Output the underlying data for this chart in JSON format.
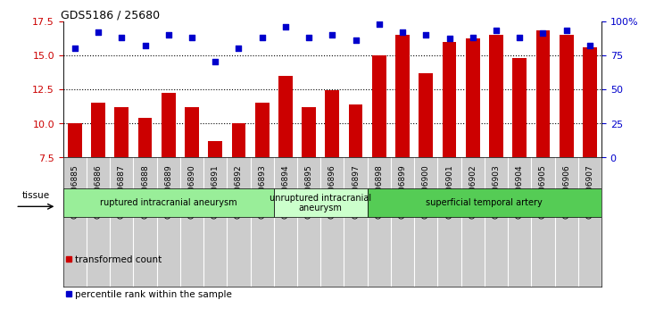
{
  "title": "GDS5186 / 25680",
  "samples": [
    "GSM1306885",
    "GSM1306886",
    "GSM1306887",
    "GSM1306888",
    "GSM1306889",
    "GSM1306890",
    "GSM1306891",
    "GSM1306892",
    "GSM1306893",
    "GSM1306894",
    "GSM1306895",
    "GSM1306896",
    "GSM1306897",
    "GSM1306898",
    "GSM1306899",
    "GSM1306900",
    "GSM1306901",
    "GSM1306902",
    "GSM1306903",
    "GSM1306904",
    "GSM1306905",
    "GSM1306906",
    "GSM1306907"
  ],
  "bar_values": [
    10.0,
    11.5,
    11.2,
    10.4,
    12.2,
    11.2,
    8.7,
    10.0,
    11.5,
    13.5,
    11.2,
    12.4,
    11.4,
    15.0,
    16.5,
    13.7,
    16.0,
    16.2,
    16.5,
    14.8,
    16.8,
    16.5,
    15.6
  ],
  "dot_values": [
    80,
    92,
    88,
    82,
    90,
    88,
    70,
    80,
    88,
    96,
    88,
    90,
    86,
    98,
    92,
    90,
    87,
    88,
    93,
    88,
    91,
    93,
    82
  ],
  "bar_color": "#cc0000",
  "dot_color": "#0000cc",
  "ylim_left": [
    7.5,
    17.5
  ],
  "ylim_right": [
    0,
    100
  ],
  "yticks_left": [
    7.5,
    10.0,
    12.5,
    15.0,
    17.5
  ],
  "yticks_right": [
    0,
    25,
    50,
    75,
    100
  ],
  "ytick_labels_right": [
    "0",
    "25",
    "50",
    "75",
    "100%"
  ],
  "grid_values": [
    10.0,
    12.5,
    15.0
  ],
  "groups": [
    {
      "label": "ruptured intracranial aneurysm",
      "start": 0,
      "end": 9,
      "color": "#99ee99"
    },
    {
      "label": "unruptured intracranial\naneurysm",
      "start": 9,
      "end": 13,
      "color": "#ccffcc"
    },
    {
      "label": "superficial temporal artery",
      "start": 13,
      "end": 23,
      "color": "#55cc55"
    }
  ],
  "tissue_label": "tissue",
  "legend_bar_label": "transformed count",
  "legend_dot_label": "percentile rank within the sample",
  "xtick_bg_color": "#cccccc",
  "plot_bg_color": "#ffffff"
}
